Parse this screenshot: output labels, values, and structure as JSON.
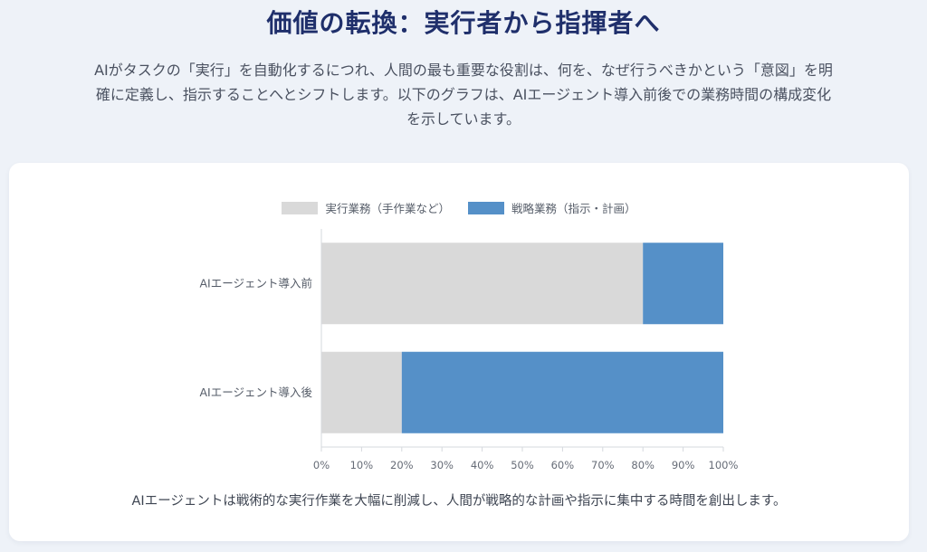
{
  "header": {
    "title": "価値の転換：実行者から指揮者へ",
    "intro": "AIがタスクの「実行」を自動化するにつれ、人間の最も重要な役割は、何を、なぜ行うべきかという「意図」を明確に定義し、指示することへとシフトします。以下のグラフは、AIエージェント導入前後での業務時間の構成変化を示しています。"
  },
  "chart_data": {
    "type": "bar",
    "orientation": "horizontal",
    "stacked": true,
    "categories": [
      "AIエージェント導入前",
      "AIエージェント導入後"
    ],
    "series": [
      {
        "name": "実行業務（手作業など）",
        "values": [
          80,
          20
        ],
        "color": "#d9d9d9"
      },
      {
        "name": "戦略業務（指示・計画）",
        "values": [
          20,
          80
        ],
        "color": "#5590c8"
      }
    ],
    "xlim": [
      0,
      100
    ],
    "x_ticks": [
      "0%",
      "10%",
      "20%",
      "30%",
      "40%",
      "50%",
      "60%",
      "70%",
      "80%",
      "90%",
      "100%"
    ],
    "x_tick_values": [
      0,
      10,
      20,
      30,
      40,
      50,
      60,
      70,
      80,
      90,
      100
    ],
    "grid": false,
    "legend": "top"
  },
  "footer": {
    "note": "AIエージェントは戦術的な実行作業を大幅に削減し、人間が戦略的な計画や指示に集中する時間を創出します。"
  }
}
